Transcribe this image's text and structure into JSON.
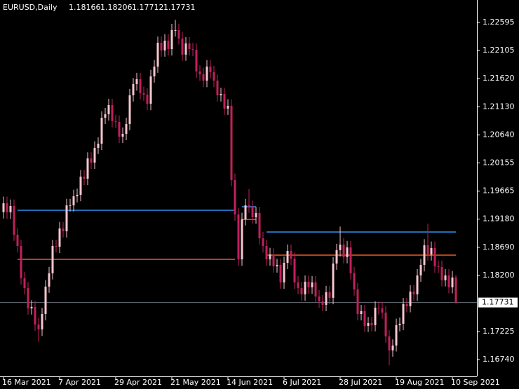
{
  "chart_data": {
    "type": "candlestick",
    "title": "EURUSD,Daily",
    "up_color": "#f5c6cf",
    "down_color": "#c2205c",
    "level_colors": [
      "#2f8ff0",
      "#f05a1e"
    ],
    "price_line_color": "#6a7078",
    "xlim": [
      -1,
      135
    ],
    "ylim": [
      1.16448,
      1.22984
    ],
    "xticks": [
      {
        "value": 0,
        "label": "16 Mar 2021"
      },
      {
        "value": 16,
        "label": "7 Apr 2021"
      },
      {
        "value": 32,
        "label": "29 Apr 2021"
      },
      {
        "value": 48,
        "label": "21 May 2021"
      },
      {
        "value": 64,
        "label": "14 Jun 2021"
      },
      {
        "value": 80,
        "label": "6 Jul 2021"
      },
      {
        "value": 96,
        "label": "28 Jul 2021"
      },
      {
        "value": 112,
        "label": "19 Aug 2021"
      },
      {
        "value": 128,
        "label": "10 Sep 2021"
      }
    ],
    "yticks": [
      1.22595,
      1.22105,
      {
        "value": 1.2162,
        "label": "1.21620"
      },
      {
        "value": 1.2113,
        "label": "1.21130"
      },
      {
        "value": 1.2064,
        "label": "1.20640"
      },
      1.20155,
      1.19665,
      {
        "value": 1.1918,
        "label": "1.19180"
      },
      {
        "value": 1.1869,
        "label": "1.18690"
      },
      {
        "value": 1.182,
        "label": "1.18200"
      },
      1.17225,
      {
        "value": 1.1674,
        "label": "1.16740"
      }
    ],
    "open": [
      1.193,
      1.19455,
      1.19297,
      1.19406,
      1.18907,
      1.18712,
      1.18153,
      1.17982,
      1.17629,
      1.17654,
      1.17349,
      1.17264,
      1.17532,
      1.18007,
      1.18238,
      1.18712,
      1.187,
      1.19017,
      1.18968,
      1.19418,
      1.19418,
      1.19576,
      1.19601,
      1.19917,
      1.19881,
      1.20234,
      1.20161,
      1.20416,
      1.20489,
      1.20939,
      1.21,
      1.21159,
      1.20879,
      1.20866,
      1.20611,
      1.2066,
      1.2083,
      1.21329,
      1.21524,
      1.21609,
      1.21365,
      1.21341,
      1.21183,
      1.21658,
      1.21828,
      1.22242,
      1.22108,
      1.22278,
      1.22132,
      1.22461,
      1.22461,
      1.22315,
      1.22035,
      1.2223,
      1.22132,
      1.2212,
      1.21743,
      1.21694,
      1.21584,
      1.21828,
      1.21731,
      1.21584,
      1.21329,
      1.21353,
      1.21098,
      1.21146,
      1.19856,
      1.1926,
      1.18481,
      1.19175,
      1.19418,
      1.19394,
      1.19211,
      1.19284,
      1.18846,
      1.18712,
      1.18481,
      1.18566,
      1.18359,
      1.18384,
      1.1808,
      1.1842,
      1.18627,
      1.18493,
      1.1808,
      1.17982,
      1.17873,
      1.18092,
      1.17994,
      1.1808,
      1.17836,
      1.17751,
      1.1769,
      1.17909,
      1.17812,
      1.18408,
      1.18639,
      1.18737,
      1.18518,
      1.18688,
      1.18238,
      1.17958,
      1.17532,
      1.17581,
      1.17325,
      1.17374,
      1.17337,
      1.17641,
      1.17629,
      1.17556,
      1.17142,
      1.16899,
      1.16984,
      1.17337,
      1.17362,
      1.17702,
      1.17666,
      1.17921,
      1.17873,
      1.18201,
      1.18384,
      1.18725,
      1.18566,
      1.18676,
      1.18359,
      1.18347,
      1.18116,
      1.18201,
      1.17994,
      1.18166
    ],
    "high": [
      1.1957,
      1.1957,
      1.1952,
      1.1952,
      1.1902,
      1.1882,
      1.1826,
      1.1809,
      1.1777,
      1.1776,
      1.1746,
      1.1764,
      1.1812,
      1.1835,
      1.1882,
      1.1882,
      1.1913,
      1.1913,
      1.1953,
      1.1953,
      1.1969,
      1.1971,
      1.2003,
      1.2003,
      1.2034,
      1.2034,
      1.2053,
      1.206,
      1.2105,
      1.2111,
      1.2127,
      1.2127,
      1.2099,
      1.2098,
      1.2077,
      1.2094,
      1.2144,
      1.2163,
      1.2172,
      1.2172,
      1.2148,
      1.2145,
      1.2177,
      1.2194,
      1.2235,
      1.2235,
      1.2239,
      1.2239,
      1.2257,
      1.2264,
      1.2257,
      1.2243,
      1.2234,
      1.2234,
      1.2224,
      1.2223,
      1.2185,
      1.2181,
      1.2194,
      1.2194,
      1.2184,
      1.2169,
      1.2146,
      1.2146,
      1.2126,
      1.2126,
      1.1997,
      1.1937,
      1.1929,
      1.1953,
      1.197,
      1.195,
      1.1939,
      1.1939,
      1.1896,
      1.1882,
      1.1868,
      1.1868,
      1.1849,
      1.1849,
      1.1853,
      1.1874,
      1.1874,
      1.186,
      1.1819,
      1.1809,
      1.182,
      1.182,
      1.1819,
      1.1819,
      1.1795,
      1.1786,
      1.1802,
      1.1802,
      1.1852,
      1.1875,
      1.1905,
      1.1885,
      1.188,
      1.188,
      1.1835,
      1.1807,
      1.1769,
      1.1769,
      1.1748,
      1.1748,
      1.1775,
      1.1775,
      1.1774,
      1.1767,
      1.1725,
      1.1709,
      1.1745,
      1.1747,
      1.1781,
      1.1781,
      1.1803,
      1.1803,
      1.1831,
      1.1849,
      1.1883,
      1.191,
      1.1879,
      1.1879,
      1.1846,
      1.1846,
      1.1831,
      1.1831,
      1.1828,
      1.18206
    ],
    "low": [
      1.1919,
      1.1918,
      1.1918,
      1.188,
      1.186,
      1.1804,
      1.1787,
      1.1752,
      1.1752,
      1.1724,
      1.1705,
      1.1715,
      1.1742,
      1.179,
      1.1813,
      1.186,
      1.1859,
      1.1886,
      1.1886,
      1.1931,
      1.1931,
      1.1947,
      1.1949,
      1.1977,
      1.1977,
      1.2005,
      1.2005,
      1.2031,
      1.2038,
      1.2083,
      1.2089,
      1.2077,
      1.2076,
      1.205,
      1.205,
      1.2055,
      1.2072,
      1.2122,
      1.2141,
      1.2126,
      1.2123,
      1.2107,
      1.2107,
      1.2155,
      1.2172,
      1.22,
      1.22,
      1.2202,
      1.2202,
      1.2235,
      1.2221,
      1.2193,
      1.2193,
      1.2202,
      1.2201,
      1.2163,
      1.2158,
      1.2147,
      1.2147,
      1.2162,
      1.2147,
      1.2122,
      1.2122,
      1.2099,
      1.2099,
      1.1975,
      1.1915,
      1.1837,
      1.1837,
      1.1907,
      1.1929,
      1.191,
      1.191,
      1.1874,
      1.186,
      1.1837,
      1.1837,
      1.1825,
      1.1825,
      1.1797,
      1.1797,
      1.1831,
      1.1838,
      1.1797,
      1.1787,
      1.1776,
      1.1776,
      1.1788,
      1.1788,
      1.1773,
      1.1764,
      1.1758,
      1.1758,
      1.177,
      1.177,
      1.183,
      1.1853,
      1.1841,
      1.1841,
      1.1813,
      1.1785,
      1.1742,
      1.1742,
      1.1722,
      1.1722,
      1.1723,
      1.1723,
      1.1752,
      1.1745,
      1.1703,
      1.1664,
      1.1679,
      1.1688,
      1.1723,
      1.1725,
      1.1756,
      1.1756,
      1.1776,
      1.1776,
      1.1809,
      1.1827,
      1.1846,
      1.1846,
      1.1825,
      1.1824,
      1.1801,
      1.1801,
      1.1789,
      1.1789,
      1.17712
    ],
    "close": [
      1.19455,
      1.19297,
      1.19406,
      1.18907,
      1.18712,
      1.18153,
      1.17982,
      1.17629,
      1.17654,
      1.17349,
      1.17264,
      1.17532,
      1.18007,
      1.18238,
      1.18712,
      1.187,
      1.19017,
      1.18968,
      1.19418,
      1.19418,
      1.19576,
      1.19601,
      1.19917,
      1.19881,
      1.20234,
      1.20161,
      1.20416,
      1.20489,
      1.20939,
      1.21,
      1.21159,
      1.20879,
      1.20866,
      1.20611,
      1.2066,
      1.2083,
      1.21329,
      1.21524,
      1.21609,
      1.21365,
      1.21341,
      1.21183,
      1.21658,
      1.21828,
      1.22242,
      1.22108,
      1.22278,
      1.22132,
      1.22461,
      1.22461,
      1.22315,
      1.22035,
      1.2223,
      1.22132,
      1.2212,
      1.21743,
      1.21694,
      1.21584,
      1.21828,
      1.21731,
      1.21584,
      1.21329,
      1.21353,
      1.21098,
      1.21146,
      1.19856,
      1.1926,
      1.18481,
      1.19175,
      1.19418,
      1.19394,
      1.19211,
      1.19284,
      1.18846,
      1.18712,
      1.18481,
      1.18566,
      1.18359,
      1.18384,
      1.1808,
      1.1842,
      1.18627,
      1.18493,
      1.1808,
      1.17982,
      1.17873,
      1.18092,
      1.17994,
      1.1808,
      1.17836,
      1.17751,
      1.1769,
      1.17909,
      1.17812,
      1.18408,
      1.18639,
      1.18737,
      1.18518,
      1.18688,
      1.18238,
      1.17958,
      1.17532,
      1.17581,
      1.17325,
      1.17374,
      1.17337,
      1.17641,
      1.17629,
      1.17556,
      1.17142,
      1.16899,
      1.16984,
      1.17337,
      1.17362,
      1.17702,
      1.17666,
      1.17921,
      1.17873,
      1.18201,
      1.18384,
      1.18725,
      1.18566,
      1.18676,
      1.18359,
      1.18347,
      1.18116,
      1.18201,
      1.17994,
      1.18166,
      1.17731
    ],
    "levels": [
      [
        {
          "from": 4,
          "to": 66,
          "value": 1.19333
        },
        {
          "from": 68,
          "to": 72,
          "value": 1.19394
        },
        {
          "from": 75,
          "to": 129,
          "value": 1.18956
        }
      ],
      [
        {
          "from": 4,
          "to": 66,
          "value": 1.18481
        },
        {
          "from": 68,
          "to": 72,
          "value": 1.19175
        },
        {
          "from": 75,
          "to": 129,
          "value": 1.18554
        }
      ]
    ]
  }
}
